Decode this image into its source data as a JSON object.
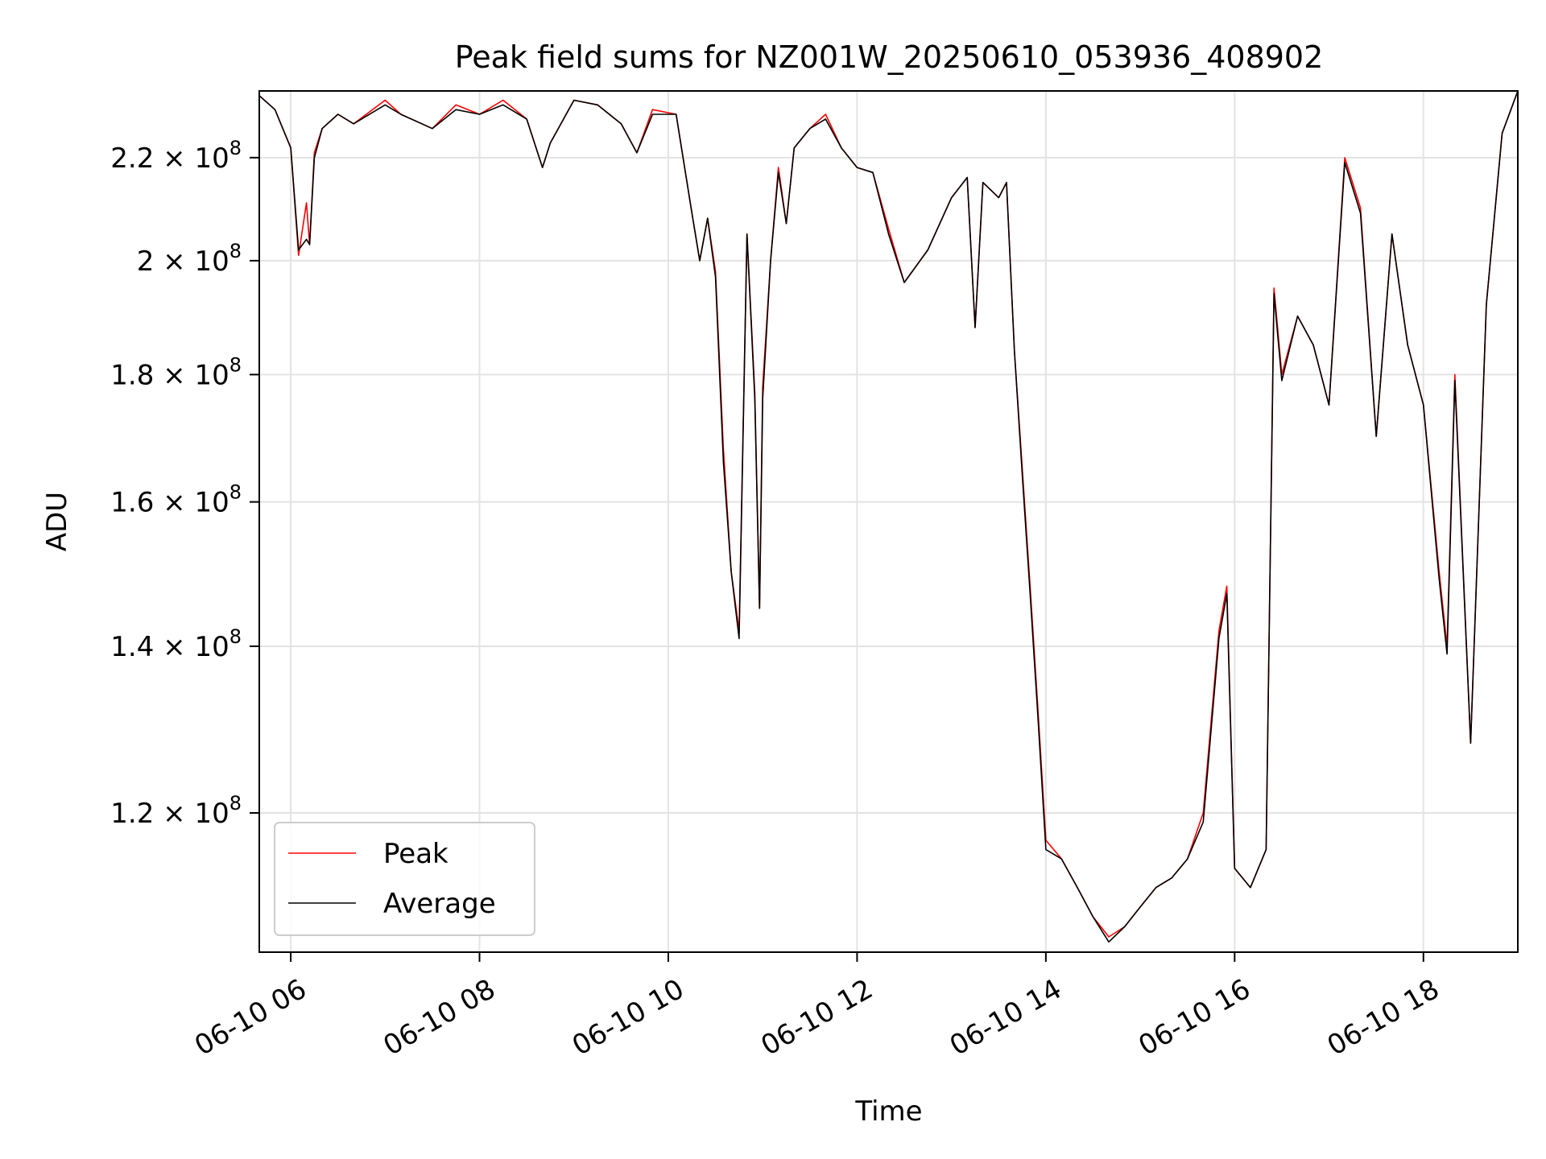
{
  "chart_data": {
    "type": "line",
    "title": "Peak field sums for NZ001W_20250610_053936_408902",
    "xlabel": "Time",
    "ylabel": "ADU",
    "y_scale": "log",
    "grid": true,
    "legend_position": "lower-left",
    "xlim": [
      "2025-06-10 05:40",
      "2025-06-10 19:00"
    ],
    "ylim": [
      105500000,
      234000000
    ],
    "x_ticks": [
      {
        "value": "2025-06-10 06:00",
        "label": "06-10 06"
      },
      {
        "value": "2025-06-10 08:00",
        "label": "06-10 08"
      },
      {
        "value": "2025-06-10 10:00",
        "label": "06-10 10"
      },
      {
        "value": "2025-06-10 12:00",
        "label": "06-10 12"
      },
      {
        "value": "2025-06-10 14:00",
        "label": "06-10 14"
      },
      {
        "value": "2025-06-10 16:00",
        "label": "06-10 16"
      },
      {
        "value": "2025-06-10 18:00",
        "label": "06-10 18"
      }
    ],
    "y_ticks": [
      {
        "value": 120000000,
        "mant": "1.2",
        "exp": "8"
      },
      {
        "value": 140000000,
        "mant": "1.4",
        "exp": "8"
      },
      {
        "value": 160000000,
        "mant": "1.6",
        "exp": "8"
      },
      {
        "value": 180000000,
        "mant": "1.8",
        "exp": "8"
      },
      {
        "value": 200000000,
        "mant": "2",
        "exp": "8"
      },
      {
        "value": 220000000,
        "mant": "2.2",
        "exp": "8"
      }
    ],
    "series": [
      {
        "name": "Peak",
        "color": "#ff0000",
        "x": [
          "2025-06-10 05:40",
          "2025-06-10 05:50",
          "2025-06-10 06:00",
          "2025-06-10 06:05",
          "2025-06-10 06:10",
          "2025-06-10 06:12",
          "2025-06-10 06:15",
          "2025-06-10 06:20",
          "2025-06-10 06:30",
          "2025-06-10 06:40",
          "2025-06-10 07:00",
          "2025-06-10 07:10",
          "2025-06-10 07:30",
          "2025-06-10 07:45",
          "2025-06-10 08:00",
          "2025-06-10 08:15",
          "2025-06-10 08:30",
          "2025-06-10 08:40",
          "2025-06-10 08:45",
          "2025-06-10 09:00",
          "2025-06-10 09:15",
          "2025-06-10 09:30",
          "2025-06-10 09:40",
          "2025-06-10 09:50",
          "2025-06-10 10:05",
          "2025-06-10 10:15",
          "2025-06-10 10:20",
          "2025-06-10 10:25",
          "2025-06-10 10:30",
          "2025-06-10 10:35",
          "2025-06-10 10:40",
          "2025-06-10 10:45",
          "2025-06-10 10:50",
          "2025-06-10 10:55",
          "2025-06-10 10:58",
          "2025-06-10 11:00",
          "2025-06-10 11:05",
          "2025-06-10 11:10",
          "2025-06-10 11:15",
          "2025-06-10 11:20",
          "2025-06-10 11:30",
          "2025-06-10 11:40",
          "2025-06-10 11:50",
          "2025-06-10 12:00",
          "2025-06-10 12:10",
          "2025-06-10 12:20",
          "2025-06-10 12:30",
          "2025-06-10 12:45",
          "2025-06-10 13:00",
          "2025-06-10 13:10",
          "2025-06-10 13:15",
          "2025-06-10 13:20",
          "2025-06-10 13:30",
          "2025-06-10 13:35",
          "2025-06-10 13:40",
          "2025-06-10 13:45",
          "2025-06-10 13:50",
          "2025-06-10 13:55",
          "2025-06-10 14:00",
          "2025-06-10 14:10",
          "2025-06-10 14:20",
          "2025-06-10 14:30",
          "2025-06-10 14:40",
          "2025-06-10 14:50",
          "2025-06-10 15:00",
          "2025-06-10 15:10",
          "2025-06-10 15:20",
          "2025-06-10 15:30",
          "2025-06-10 15:40",
          "2025-06-10 15:50",
          "2025-06-10 15:55",
          "2025-06-10 16:00",
          "2025-06-10 16:10",
          "2025-06-10 16:20",
          "2025-06-10 16:25",
          "2025-06-10 16:30",
          "2025-06-10 16:40",
          "2025-06-10 16:50",
          "2025-06-10 17:00",
          "2025-06-10 17:10",
          "2025-06-10 17:20",
          "2025-06-10 17:30",
          "2025-06-10 17:40",
          "2025-06-10 17:50",
          "2025-06-10 18:00",
          "2025-06-10 18:10",
          "2025-06-10 18:15",
          "2025-06-10 18:20",
          "2025-06-10 18:30",
          "2025-06-10 18:40",
          "2025-06-10 18:50",
          "2025-06-10 19:00"
        ],
        "y": [
          233000000,
          230000000,
          222000000,
          201000000,
          211000000,
          203000000,
          221000000,
          226000000,
          229000000,
          227000000,
          232000000,
          229000000,
          226000000,
          231000000,
          229000000,
          232000000,
          228000000,
          218000000,
          223000000,
          232000000,
          231000000,
          227000000,
          221000000,
          230000000,
          229000000,
          209000000,
          200000000,
          208000000,
          198000000,
          168000000,
          150000000,
          142000000,
          205000000,
          177000000,
          145000000,
          178000000,
          200000000,
          218000000,
          207000000,
          222000000,
          226000000,
          229000000,
          222000000,
          218000000,
          217000000,
          206000000,
          196000000,
          202000000,
          212000000,
          216000000,
          188000000,
          215000000,
          212000000,
          215000000,
          184000000,
          165000000,
          148000000,
          132000000,
          117000000,
          115000000,
          112000000,
          109000000,
          107000000,
          108000000,
          110000000,
          112000000,
          113000000,
          115000000,
          120000000,
          142000000,
          148000000,
          114000000,
          112000000,
          116000000,
          195000000,
          180000000,
          190000000,
          185000000,
          175000000,
          220000000,
          210000000,
          170000000,
          205000000,
          185000000,
          175000000,
          150000000,
          140000000,
          180000000,
          128000000,
          192000000,
          225000000,
          234000000
        ]
      },
      {
        "name": "Average",
        "color": "#000000",
        "x": [
          "2025-06-10 05:40",
          "2025-06-10 05:50",
          "2025-06-10 06:00",
          "2025-06-10 06:05",
          "2025-06-10 06:10",
          "2025-06-10 06:12",
          "2025-06-10 06:15",
          "2025-06-10 06:20",
          "2025-06-10 06:30",
          "2025-06-10 06:40",
          "2025-06-10 07:00",
          "2025-06-10 07:10",
          "2025-06-10 07:30",
          "2025-06-10 07:45",
          "2025-06-10 08:00",
          "2025-06-10 08:15",
          "2025-06-10 08:30",
          "2025-06-10 08:40",
          "2025-06-10 08:45",
          "2025-06-10 09:00",
          "2025-06-10 09:15",
          "2025-06-10 09:30",
          "2025-06-10 09:40",
          "2025-06-10 09:50",
          "2025-06-10 10:05",
          "2025-06-10 10:15",
          "2025-06-10 10:20",
          "2025-06-10 10:25",
          "2025-06-10 10:30",
          "2025-06-10 10:35",
          "2025-06-10 10:40",
          "2025-06-10 10:45",
          "2025-06-10 10:50",
          "2025-06-10 10:55",
          "2025-06-10 10:58",
          "2025-06-10 11:00",
          "2025-06-10 11:05",
          "2025-06-10 11:10",
          "2025-06-10 11:15",
          "2025-06-10 11:20",
          "2025-06-10 11:30",
          "2025-06-10 11:40",
          "2025-06-10 11:50",
          "2025-06-10 12:00",
          "2025-06-10 12:10",
          "2025-06-10 12:20",
          "2025-06-10 12:30",
          "2025-06-10 12:45",
          "2025-06-10 13:00",
          "2025-06-10 13:10",
          "2025-06-10 13:15",
          "2025-06-10 13:20",
          "2025-06-10 13:30",
          "2025-06-10 13:35",
          "2025-06-10 13:40",
          "2025-06-10 13:45",
          "2025-06-10 13:50",
          "2025-06-10 13:55",
          "2025-06-10 14:00",
          "2025-06-10 14:10",
          "2025-06-10 14:20",
          "2025-06-10 14:30",
          "2025-06-10 14:40",
          "2025-06-10 14:50",
          "2025-06-10 15:00",
          "2025-06-10 15:10",
          "2025-06-10 15:20",
          "2025-06-10 15:30",
          "2025-06-10 15:40",
          "2025-06-10 15:50",
          "2025-06-10 15:55",
          "2025-06-10 16:00",
          "2025-06-10 16:10",
          "2025-06-10 16:20",
          "2025-06-10 16:25",
          "2025-06-10 16:30",
          "2025-06-10 16:40",
          "2025-06-10 16:50",
          "2025-06-10 17:00",
          "2025-06-10 17:10",
          "2025-06-10 17:20",
          "2025-06-10 17:30",
          "2025-06-10 17:40",
          "2025-06-10 17:50",
          "2025-06-10 18:00",
          "2025-06-10 18:10",
          "2025-06-10 18:15",
          "2025-06-10 18:20",
          "2025-06-10 18:30",
          "2025-06-10 18:40",
          "2025-06-10 18:50",
          "2025-06-10 19:00"
        ],
        "y": [
          233000000,
          230000000,
          222000000,
          202000000,
          204000000,
          203000000,
          220000000,
          226000000,
          229000000,
          227000000,
          231000000,
          229000000,
          226000000,
          230000000,
          229000000,
          231000000,
          228000000,
          218000000,
          223000000,
          232000000,
          231000000,
          227000000,
          221000000,
          229000000,
          229000000,
          209000000,
          200000000,
          208000000,
          197000000,
          166000000,
          150000000,
          141000000,
          205000000,
          176000000,
          145000000,
          176000000,
          200000000,
          217000000,
          207000000,
          222000000,
          226000000,
          228000000,
          222000000,
          218000000,
          217000000,
          205000000,
          196000000,
          202000000,
          212000000,
          216000000,
          188000000,
          215000000,
          212000000,
          215000000,
          184000000,
          164000000,
          147000000,
          131000000,
          116000000,
          115000000,
          112000000,
          109000000,
          106500000,
          108000000,
          110000000,
          112000000,
          113000000,
          115000000,
          119000000,
          141000000,
          147000000,
          114000000,
          112000000,
          116000000,
          194000000,
          179000000,
          190000000,
          185000000,
          175000000,
          219000000,
          209000000,
          170000000,
          205000000,
          185000000,
          175000000,
          149000000,
          139000000,
          179000000,
          128000000,
          192000000,
          225000000,
          234000000
        ]
      }
    ]
  }
}
